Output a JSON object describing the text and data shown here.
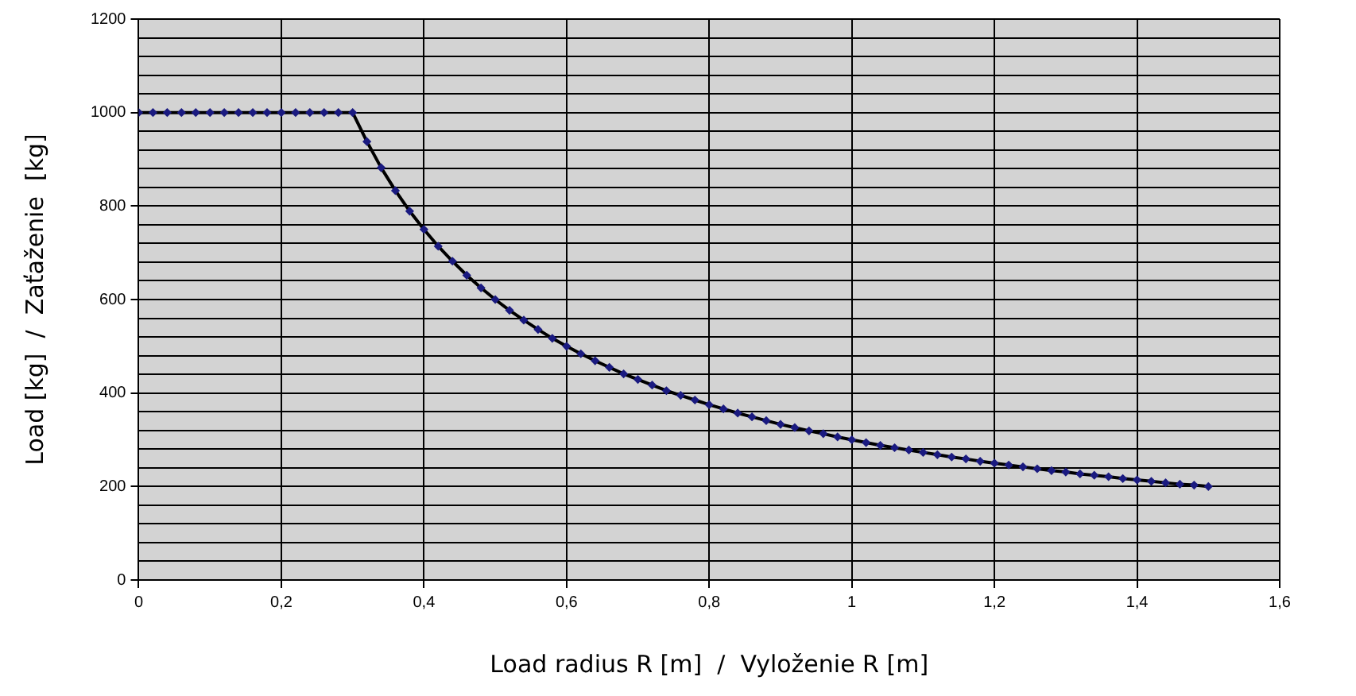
{
  "chart_data": {
    "type": "line",
    "xlabel": "Load radius R [m]  /  Vyloženie R [m]",
    "ylabel": "Load [kg]  /  Zaťaženie  [kg]",
    "x": [
      0,
      0.02,
      0.04,
      0.06,
      0.08,
      0.1,
      0.12,
      0.14,
      0.16,
      0.18,
      0.2,
      0.22,
      0.24,
      0.26,
      0.28,
      0.3,
      0.32,
      0.34,
      0.36,
      0.38,
      0.4,
      0.42,
      0.44,
      0.46,
      0.48,
      0.5,
      0.52,
      0.54,
      0.56,
      0.58,
      0.6,
      0.62,
      0.64,
      0.66,
      0.68,
      0.7,
      0.72,
      0.74,
      0.76,
      0.78,
      0.8,
      0.82,
      0.84,
      0.86,
      0.88,
      0.9,
      0.92,
      0.94,
      0.96,
      0.98,
      1,
      1.02,
      1.04,
      1.06,
      1.08,
      1.1,
      1.12,
      1.14,
      1.16,
      1.18,
      1.2,
      1.22,
      1.24,
      1.26,
      1.28,
      1.3,
      1.32,
      1.34,
      1.36,
      1.38,
      1.4,
      1.42,
      1.44,
      1.46,
      1.48,
      1.5
    ],
    "series": [
      {
        "color": "#000000",
        "marker": "none",
        "values": [
          1000,
          1000,
          1000,
          1000,
          1000,
          1000,
          1000,
          1000,
          1000,
          1000,
          1000,
          1000,
          1000,
          1000,
          1000,
          1000,
          938,
          882,
          833,
          789,
          750,
          714,
          682,
          652,
          625,
          600,
          577,
          556,
          536,
          517,
          500,
          484,
          469,
          455,
          441,
          429,
          417,
          405,
          395,
          385,
          375,
          366,
          357,
          349,
          341,
          333,
          326,
          319,
          313,
          306,
          300,
          294,
          288,
          283,
          278,
          273,
          268,
          263,
          259,
          254,
          250,
          246,
          242,
          238,
          234,
          231,
          227,
          224,
          221,
          217,
          214,
          211,
          208,
          205,
          203,
          200
        ]
      },
      {
        "type": "scatter",
        "color": "#1a1a80",
        "marker": "diamond",
        "values": [
          1000,
          1000,
          1000,
          1000,
          1000,
          1000,
          1000,
          1000,
          1000,
          1000,
          1000,
          1000,
          1000,
          1000,
          1000,
          1000,
          938,
          882,
          833,
          789,
          750,
          714,
          682,
          652,
          625,
          600,
          577,
          556,
          536,
          517,
          500,
          484,
          469,
          455,
          441,
          429,
          417,
          405,
          395,
          385,
          375,
          366,
          357,
          349,
          341,
          333,
          326,
          319,
          313,
          306,
          300,
          294,
          288,
          283,
          278,
          273,
          268,
          263,
          259,
          254,
          250,
          246,
          242,
          238,
          234,
          231,
          227,
          224,
          221,
          217,
          214,
          211,
          208,
          205,
          203,
          200
        ]
      }
    ],
    "xlim": [
      0,
      1.6
    ],
    "xticks": [
      0,
      {
        "value": 0.2,
        "label": "0,2"
      },
      {
        "value": 0.4,
        "label": "0,4"
      },
      {
        "value": 0.6,
        "label": "0,6"
      },
      {
        "value": 0.8,
        "label": "0,8"
      },
      1,
      {
        "value": 1.2,
        "label": "1,2"
      },
      {
        "value": 1.4,
        "label": "1,4"
      },
      {
        "value": 1.6,
        "label": "1,6"
      }
    ],
    "ylim": [
      0,
      1200
    ],
    "yticks": [
      0,
      {
        "value": 40,
        "label": null
      },
      {
        "value": 80,
        "label": null
      },
      {
        "value": 120,
        "label": null
      },
      {
        "value": 160,
        "label": null
      },
      200,
      {
        "value": 240,
        "label": null
      },
      {
        "value": 280,
        "label": null
      },
      {
        "value": 320,
        "label": null
      },
      {
        "value": 360,
        "label": null
      },
      400,
      {
        "value": 440,
        "label": null
      },
      {
        "value": 480,
        "label": null
      },
      {
        "value": 520,
        "label": null
      },
      {
        "value": 560,
        "label": null
      },
      600,
      {
        "value": 640,
        "label": null
      },
      {
        "value": 680,
        "label": null
      },
      {
        "value": 720,
        "label": null
      },
      {
        "value": 760,
        "label": null
      },
      800,
      {
        "value": 840,
        "label": null
      },
      {
        "value": 880,
        "label": null
      },
      {
        "value": 920,
        "label": null
      },
      {
        "value": 960,
        "label": null
      },
      1000,
      {
        "value": 1040,
        "label": null
      },
      {
        "value": 1080,
        "label": null
      },
      {
        "value": 1120,
        "label": null
      },
      {
        "value": 1160,
        "label": null
      },
      1200
    ],
    "grid": true,
    "legend": false
  }
}
